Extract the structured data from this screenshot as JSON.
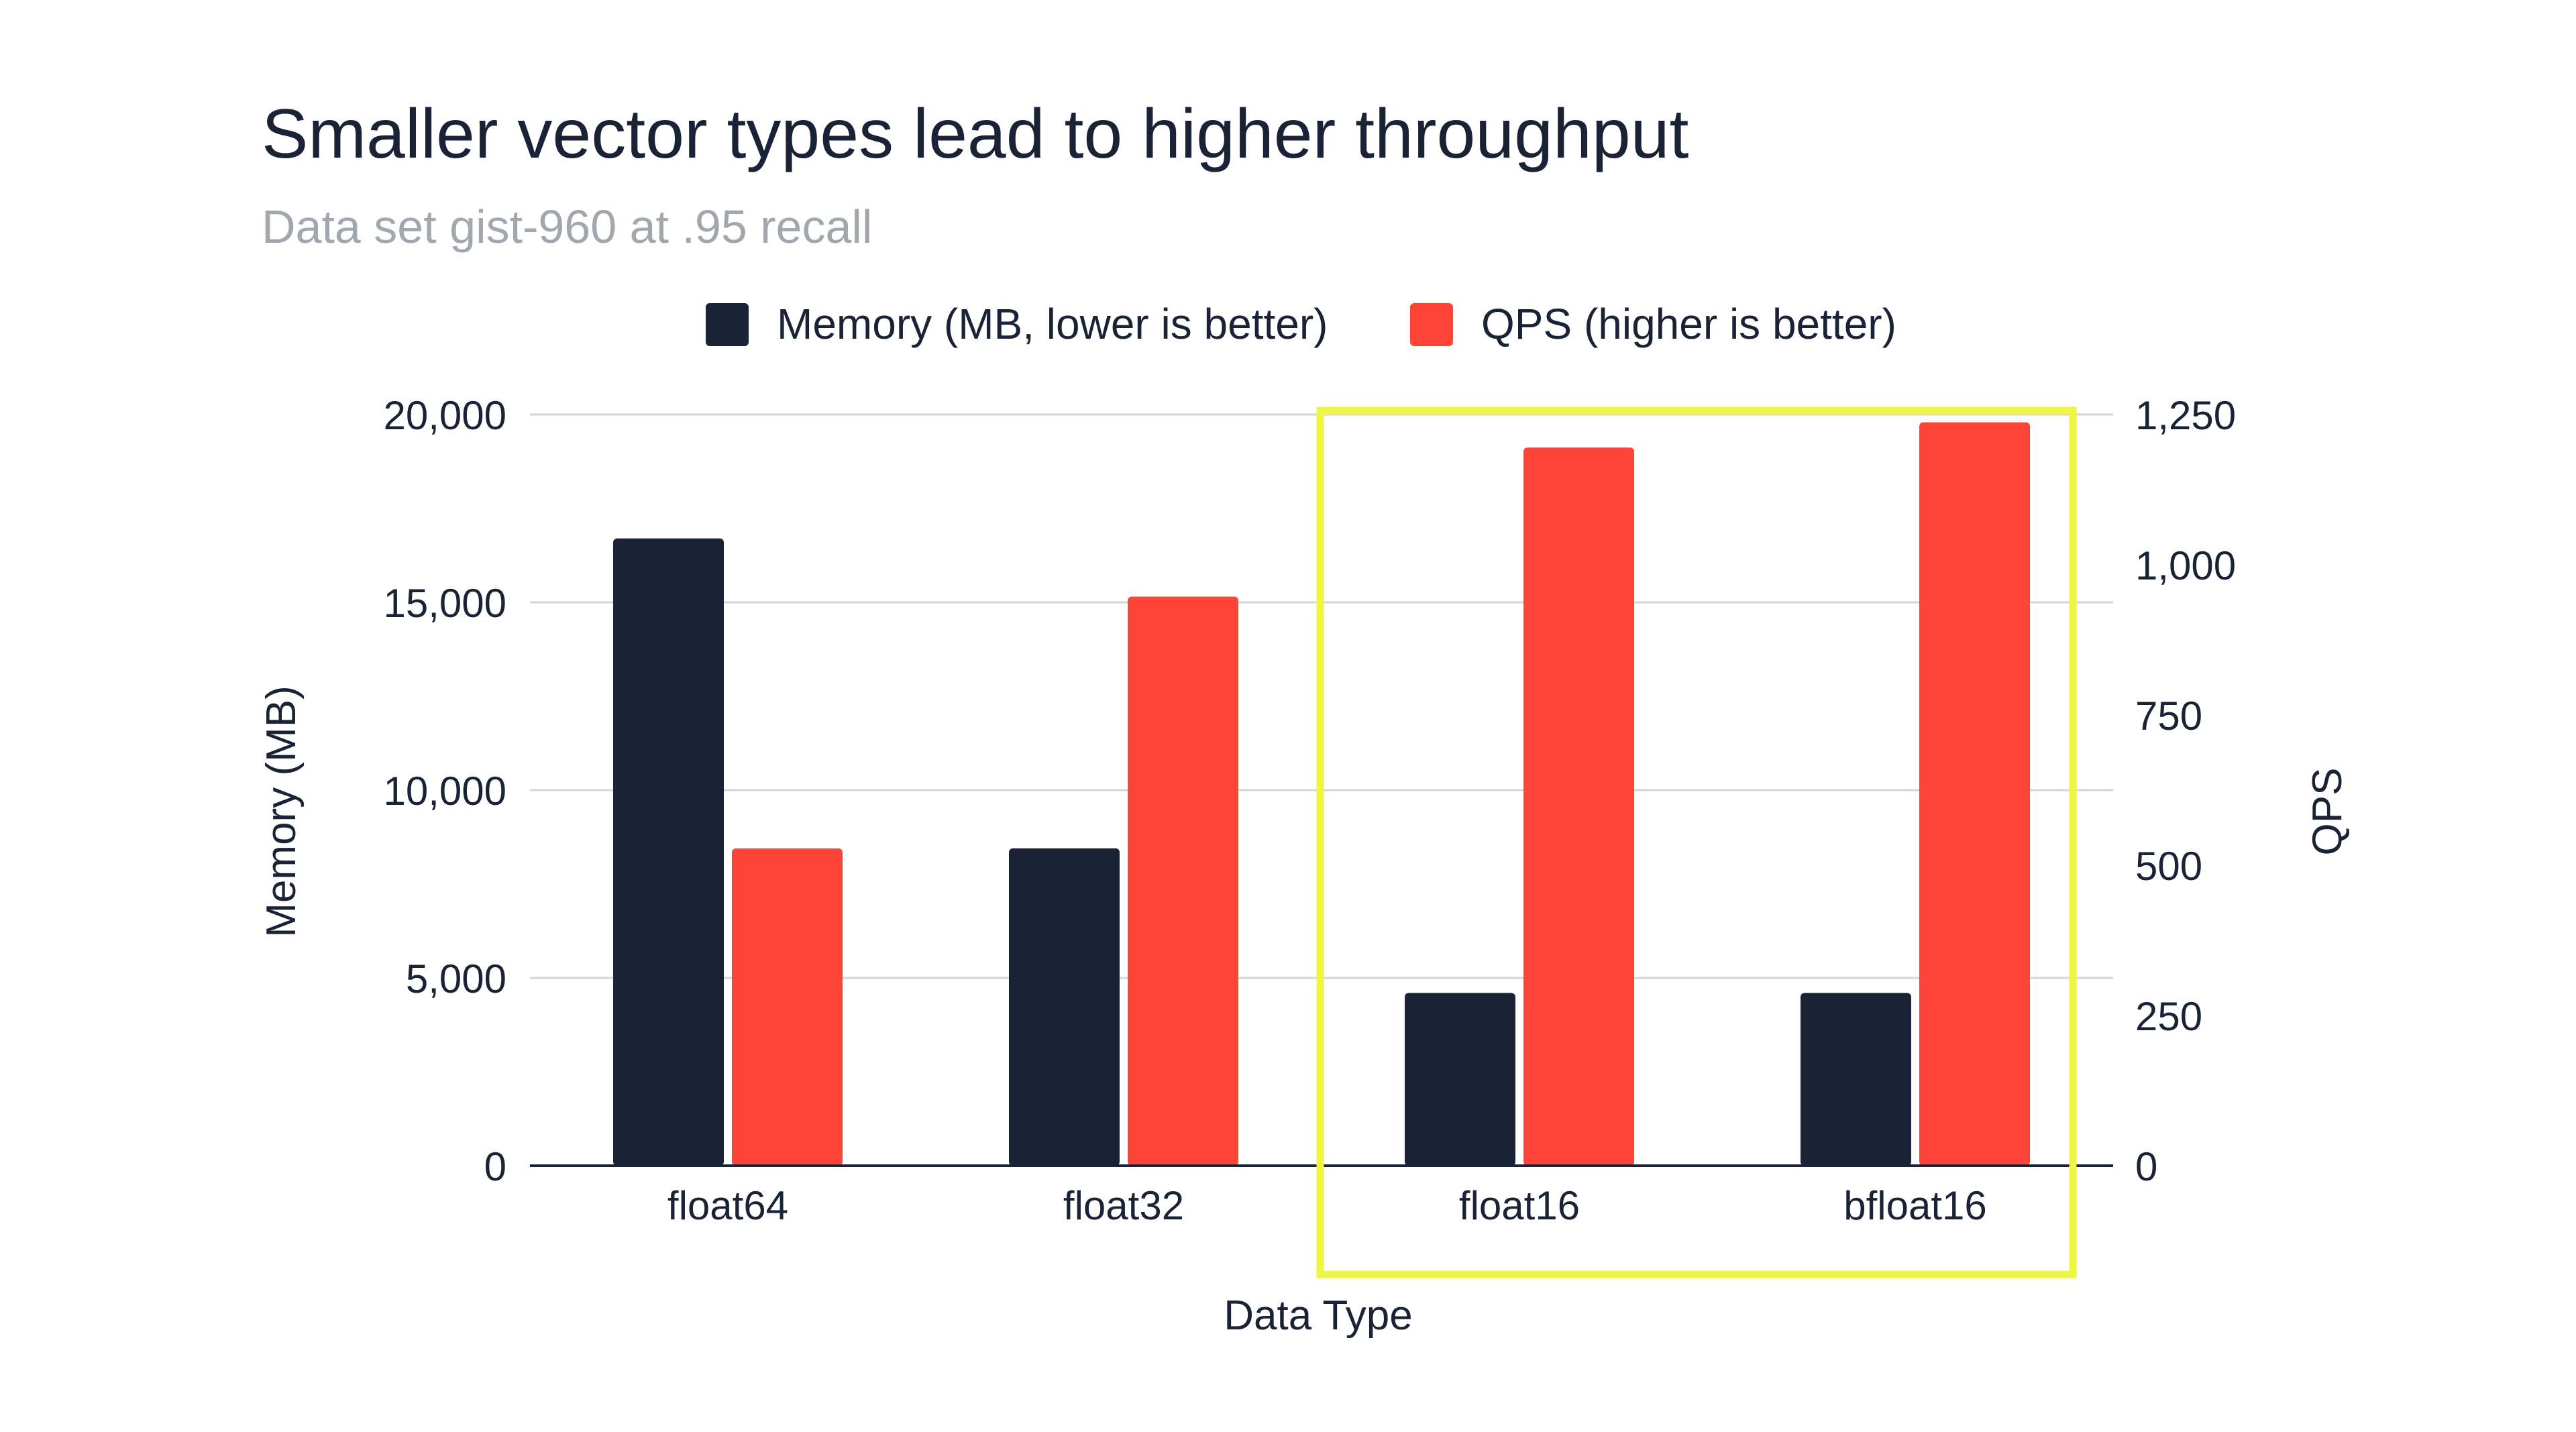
{
  "chart_data": {
    "type": "bar",
    "title": "Smaller vector types lead to higher throughput",
    "subtitle": "Data set gist-960 at .95 recall",
    "xlabel": "Data Type",
    "ylabel": "Memory (MB)",
    "y2label": "QPS",
    "categories": [
      "float64",
      "float32",
      "float16",
      "bfloat16"
    ],
    "series": [
      {
        "name": "Memory (MB, lower is better)",
        "axis": "left",
        "color": "#1a2236",
        "values": [
          16700,
          8450,
          4600,
          4600
        ]
      },
      {
        "name": "QPS (higher is better)",
        "axis": "right",
        "color": "#fe4436",
        "values": [
          528,
          947,
          1195,
          1237
        ]
      }
    ],
    "ylim": [
      0,
      20000
    ],
    "y2lim": [
      0,
      1250
    ],
    "yticks": [
      "0",
      "5,000",
      "10,000",
      "15,000",
      "20,000"
    ],
    "y2ticks": [
      "0",
      "250",
      "500",
      "750",
      "1,000",
      "1,250"
    ],
    "grid": true,
    "legend_position": "top",
    "highlight": {
      "categories": [
        "float16",
        "bfloat16"
      ],
      "color": "#eef542"
    }
  }
}
